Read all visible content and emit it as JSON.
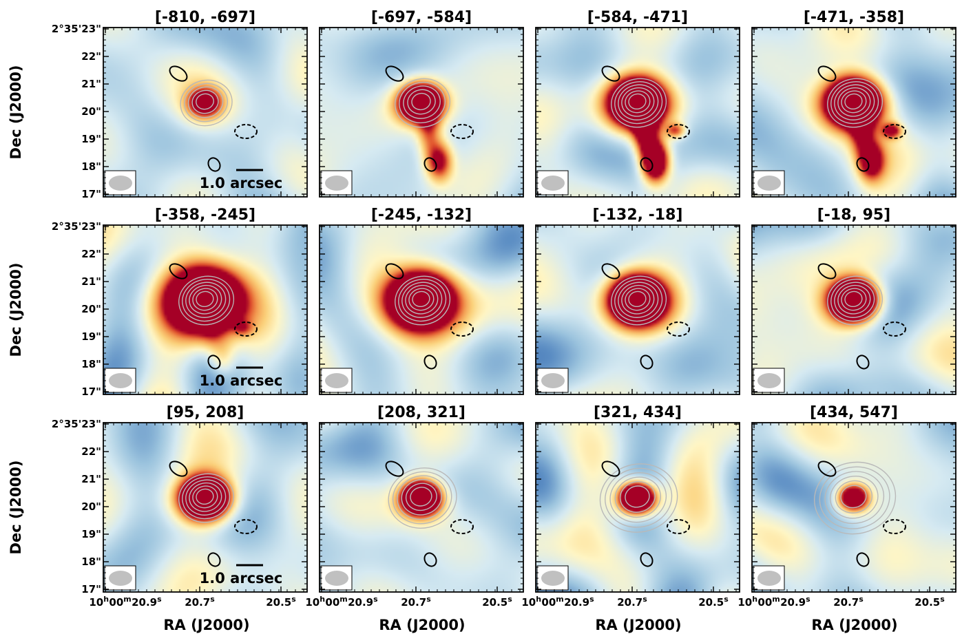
{
  "figure": {
    "ylabel": "Dec (J2000)",
    "xlabel": "RA (J2000)",
    "scalebar_label": "1.0 arcsec",
    "dec_ticks": [
      "2°35'23\"",
      "22\"",
      "21\"",
      "20\"",
      "19\"",
      "18\"",
      "17\""
    ],
    "ra_tick_first": "10h00m20.9s",
    "ra_ticks": [
      "20.7s",
      "20.5s"
    ],
    "colormap": [
      "#2c5ba3",
      "#5a8cc3",
      "#9cc4de",
      "#d6eaf2",
      "#fff6c5",
      "#fbd17a",
      "#f39c52",
      "#e0512c",
      "#a50026"
    ]
  },
  "chart_data": {
    "type": "heatmap",
    "description_kind": "channel maps",
    "panels": [
      {
        "title": "[-810, -697]",
        "range": [
          -810,
          -697
        ],
        "intensity": 0.45,
        "extent": 0.6,
        "contours": 5,
        "contour_spread": 1.0,
        "tail": 0.0,
        "blob_right": 0.0
      },
      {
        "title": "[-697, -584]",
        "range": [
          -697,
          -584
        ],
        "intensity": 0.8,
        "extent": 0.8,
        "contours": 5,
        "contour_spread": 1.0,
        "tail": 0.55,
        "blob_right": 0.0
      },
      {
        "title": "[-584, -471]",
        "range": [
          -584,
          -471
        ],
        "intensity": 1.0,
        "extent": 0.95,
        "contours": 6,
        "contour_spread": 1.0,
        "tail": 1.0,
        "blob_right": 0.55
      },
      {
        "title": "[-471, -358]",
        "range": [
          -471,
          -358
        ],
        "intensity": 1.0,
        "extent": 1.0,
        "contours": 6,
        "contour_spread": 1.0,
        "tail": 0.6,
        "blob_right": 0.75
      },
      {
        "title": "[-358, -245]",
        "range": [
          -358,
          -245
        ],
        "intensity": 1.0,
        "extent": 1.35,
        "contours": 6,
        "contour_spread": 1.0,
        "tail": 0.2,
        "blob_right": 0.3
      },
      {
        "title": "[-245, -132]",
        "range": [
          -245,
          -132
        ],
        "intensity": 1.0,
        "extent": 1.2,
        "contours": 6,
        "contour_spread": 1.0,
        "tail": 0.0,
        "blob_right": 0.0
      },
      {
        "title": "[-132, -18]",
        "range": [
          -132,
          -18
        ],
        "intensity": 1.0,
        "extent": 1.0,
        "contours": 6,
        "contour_spread": 1.0,
        "tail": 0.0,
        "blob_right": 0.0
      },
      {
        "title": "[-18, 95]",
        "range": [
          -18,
          95
        ],
        "intensity": 1.0,
        "extent": 0.85,
        "contours": 6,
        "contour_spread": 1.0,
        "tail": 0.0,
        "blob_right": 0.0
      },
      {
        "title": "[95, 208]",
        "range": [
          95,
          208
        ],
        "intensity": 1.0,
        "extent": 0.85,
        "contours": 6,
        "contour_spread": 1.0,
        "tail": 0.0,
        "blob_right": 0.0
      },
      {
        "title": "[208, 321]",
        "range": [
          208,
          321
        ],
        "intensity": 1.0,
        "extent": 0.65,
        "contours": 6,
        "contour_spread": 1.3,
        "tail": 0.0,
        "blob_right": 0.0
      },
      {
        "title": "[321, 434]",
        "range": [
          321,
          434
        ],
        "intensity": 1.0,
        "extent": 0.6,
        "contours": 6,
        "contour_spread": 1.5,
        "tail": 0.0,
        "blob_right": 0.0
      },
      {
        "title": "[434, 547]",
        "range": [
          434,
          547
        ],
        "intensity": 0.6,
        "extent": 0.55,
        "contours": 6,
        "contour_spread": 1.6,
        "tail": 0.0,
        "blob_right": 0.0
      }
    ],
    "scalebar_panels": [
      0,
      4,
      8
    ]
  }
}
